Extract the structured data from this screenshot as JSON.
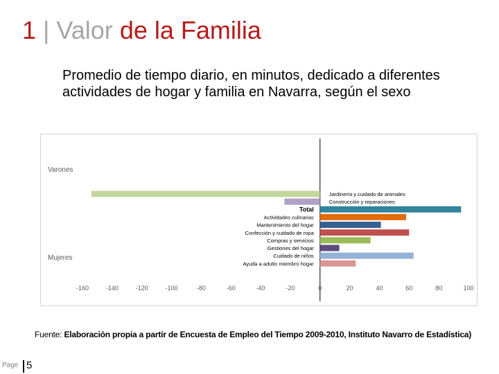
{
  "slide": {
    "title_number": "1",
    "title_separator": "|",
    "title_word1": "Valor",
    "title_word2": "de la Familia",
    "subtitle": "Promedio de tiempo diario, en minutos, dedicado a diferentes actividades de hogar y familia en Navarra, según el sexo",
    "source_prefix": "Fuente:",
    "source_text": "Elaboración propia a partir de Encuesta de Empleo del Tiempo 2009-2010, Instituto Navarro de Estadística)",
    "page_label": "Page",
    "page_number": "5"
  },
  "colors": {
    "title_red": "#b31b1b",
    "title_gray": "#a6a6a6"
  },
  "chart_data": {
    "type": "bar",
    "orientation": "horizontal",
    "title": "",
    "xlabel": "",
    "ylabel": "",
    "xlim": [
      -160,
      100
    ],
    "x_ticks": [
      -160,
      -140,
      -120,
      -100,
      -80,
      -60,
      -40,
      -20,
      0,
      20,
      40,
      60,
      80,
      100
    ],
    "x_tick_labels": [
      "-160",
      "-140",
      "-120",
      "-100",
      "-80",
      "-60",
      "-40",
      "-20",
      "0",
      "20",
      "40",
      "60",
      "80",
      "100"
    ],
    "axis_tick_labels_note": "",
    "group_labels": {
      "men": "Varones",
      "women": "Mujeres"
    },
    "categories": [
      "Jardinería y cuidado de animales",
      "Construcción y reparaciones",
      "Total",
      "Actividades culinarias",
      "Mantenimiento del hogar",
      "Confección y cuidado de ropa",
      "Compras y servicios",
      "Gestiones del hogar",
      "Cuidado de niños",
      "Ayuda a adulto miembro hogar"
    ],
    "bars": [
      {
        "category": "Jardinería y cuidado de animales",
        "value": -154,
        "color": "#c4d79b"
      },
      {
        "category": "Construcción y reparaciones",
        "value": -24,
        "color": "#b1a0c7"
      },
      {
        "category": "Total",
        "value": 95,
        "color": "#31859c"
      },
      {
        "category": "Actividades culinarias",
        "value": 58,
        "color": "#e46c0a"
      },
      {
        "category": "Mantenimiento del hogar",
        "value": 41,
        "color": "#376092"
      },
      {
        "category": "Confección y cuidado de ropa",
        "value": 60,
        "color": "#c0504d"
      },
      {
        "category": "Compras y servicios",
        "value": 34,
        "color": "#9bbb59"
      },
      {
        "category": "Gestiones del hogar",
        "value": 13,
        "color": "#604a7b"
      },
      {
        "category": "Cuidado de niños",
        "value": 63,
        "color": "#95b3d7"
      },
      {
        "category": "Ayuda a adulto miembro hogar",
        "value": 24,
        "color": "#d99694"
      }
    ],
    "bold_categories": [
      "Total"
    ],
    "grid": false,
    "legend": "none"
  }
}
